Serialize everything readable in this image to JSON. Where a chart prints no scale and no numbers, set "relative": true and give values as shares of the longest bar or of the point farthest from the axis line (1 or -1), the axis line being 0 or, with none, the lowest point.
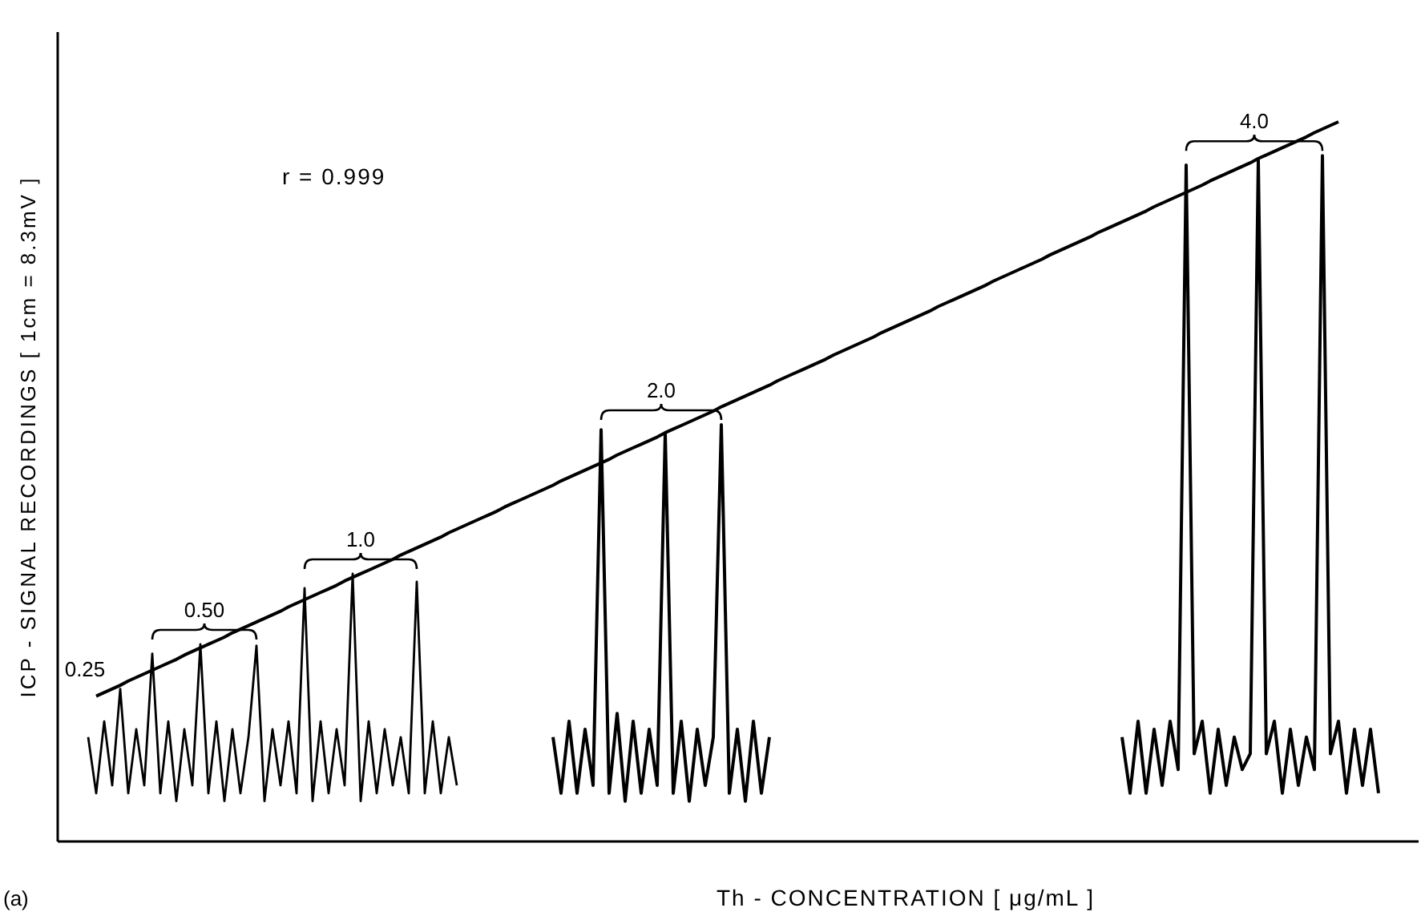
{
  "chart_data": {
    "type": "line",
    "relative": true,
    "xlabel": "Th - CONCENTRATION [ μg/mL ]",
    "ylabel": "ICP - SIGNAL RECORDINGS [ 1cm = 8.3mV ]",
    "annotations": [
      "r = 0.999",
      "(a)",
      "0.25",
      "0.50",
      "1.0",
      "2.0",
      "4.0"
    ],
    "categories": [
      null,
      null,
      null,
      null,
      null,
      null,
      null,
      null,
      null,
      null,
      null,
      null,
      null,
      null,
      null,
      null,
      null,
      null,
      null,
      null,
      null,
      null,
      null,
      null,
      null,
      null,
      null,
      null,
      null,
      null,
      null,
      null,
      null,
      null,
      null,
      null,
      null,
      null,
      null,
      null,
      null,
      null,
      null,
      null,
      null,
      null,
      null,
      null,
      null,
      null,
      null,
      null,
      null,
      null,
      null,
      null,
      null,
      null,
      null,
      null,
      null,
      null,
      null,
      null,
      null,
      null,
      null,
      null,
      null,
      null,
      null,
      null,
      null,
      null,
      null,
      null,
      null,
      null,
      null,
      null,
      null,
      null,
      null,
      null,
      null,
      null,
      null,
      null,
      null,
      null,
      null,
      null,
      null,
      null,
      null,
      null,
      null,
      null,
      null,
      null,
      null,
      null,
      null,
      null,
      null,
      null,
      null,
      null,
      null,
      null,
      null,
      null,
      null,
      null,
      null,
      null,
      null,
      null,
      null,
      null,
      null,
      null,
      null,
      null,
      null,
      null,
      null,
      null,
      null,
      null,
      null,
      null,
      null,
      null,
      null,
      null,
      null,
      null,
      null,
      null,
      null,
      null,
      null,
      null,
      null,
      null,
      null,
      null,
      null,
      null,
      null,
      null,
      null,
      null,
      null,
      null,
      null,
      null,
      null,
      null,
      null,
      null
    ],
    "series": [
      {
        "color": "#000000",
        "values": [
          0.145,
          0.067,
          0.167,
          0.078,
          0.212,
          0.067,
          0.156,
          0.078,
          0.261,
          0.067,
          0.167,
          0.056,
          0.156,
          0.078,
          0.274,
          0.067,
          0.167,
          0.056,
          0.156,
          0.067,
          0.145,
          0.272,
          0.056,
          0.156,
          0.078,
          0.167,
          0.067,
          0.352,
          0.056,
          0.167,
          0.067,
          0.156,
          0.078,
          0.372,
          0.056,
          0.167,
          0.067,
          0.156,
          0.078,
          0.145,
          0.067,
          0.361,
          0.067,
          0.167,
          0.067,
          0.145,
          0.078,
          null,
          null,
          null,
          null,
          null,
          null,
          null,
          null,
          null,
          null,
          null,
          null,
          null,
          null,
          null,
          null,
          null,
          null,
          null,
          null,
          null,
          null,
          null,
          null,
          null,
          null,
          null,
          null,
          null,
          null,
          null,
          null,
          null,
          null,
          null,
          null,
          null,
          null,
          null,
          null,
          null,
          null,
          null,
          null,
          null,
          null,
          null,
          null,
          null,
          null,
          null,
          null,
          null,
          null,
          null,
          null,
          null,
          null,
          null,
          null,
          null,
          null,
          null,
          null,
          null,
          null,
          null,
          null,
          null,
          null,
          null,
          null,
          null,
          null,
          null,
          null,
          null,
          null,
          null,
          null,
          null,
          null,
          null,
          null,
          null,
          null,
          null,
          null,
          null,
          null,
          null,
          null,
          null,
          null,
          null,
          null,
          null,
          null,
          null,
          null,
          null,
          null,
          null,
          null,
          null,
          null,
          null,
          null,
          null,
          null,
          null,
          null,
          null,
          null,
          null
        ]
      },
      {
        "color": "#000000",
        "values": [
          null,
          null,
          null,
          null,
          null,
          null,
          null,
          null,
          null,
          null,
          null,
          null,
          null,
          null,
          null,
          null,
          null,
          null,
          null,
          null,
          null,
          null,
          null,
          null,
          null,
          null,
          null,
          null,
          null,
          null,
          null,
          null,
          null,
          null,
          null,
          null,
          null,
          null,
          null,
          null,
          null,
          null,
          null,
          null,
          null,
          null,
          null,
          null,
          null,
          null,
          null,
          null,
          null,
          null,
          null,
          null,
          null,
          null,
          0.145,
          0.067,
          0.167,
          0.067,
          0.156,
          0.078,
          0.572,
          0.067,
          0.178,
          0.056,
          0.167,
          0.067,
          0.156,
          0.078,
          0.568,
          0.067,
          0.167,
          0.056,
          0.156,
          0.078,
          0.145,
          0.579,
          0.067,
          0.156,
          0.056,
          0.167,
          0.067,
          0.145,
          null,
          null,
          null,
          null,
          null,
          null,
          null,
          null,
          null,
          null,
          null,
          null,
          null,
          null,
          null,
          null,
          null,
          null,
          null,
          null,
          null,
          null,
          null,
          null,
          null,
          null,
          null,
          null,
          null,
          null,
          null,
          null,
          null,
          null,
          null,
          null,
          null,
          null,
          null,
          null,
          null,
          null,
          null,
          null,
          null,
          null,
          null,
          null,
          null,
          null,
          null,
          null,
          null,
          null,
          null,
          null,
          null,
          null,
          null,
          null,
          null,
          null,
          null,
          null,
          null,
          null,
          null,
          null,
          null,
          null,
          null,
          null,
          null,
          null,
          null,
          null
        ]
      },
      {
        "color": "#000000",
        "values": [
          null,
          null,
          null,
          null,
          null,
          null,
          null,
          null,
          null,
          null,
          null,
          null,
          null,
          null,
          null,
          null,
          null,
          null,
          null,
          null,
          null,
          null,
          null,
          null,
          null,
          null,
          null,
          null,
          null,
          null,
          null,
          null,
          null,
          null,
          null,
          null,
          null,
          null,
          null,
          null,
          null,
          null,
          null,
          null,
          null,
          null,
          null,
          null,
          null,
          null,
          null,
          null,
          null,
          null,
          null,
          null,
          null,
          null,
          null,
          null,
          null,
          null,
          null,
          null,
          null,
          null,
          null,
          null,
          null,
          null,
          null,
          null,
          null,
          null,
          null,
          null,
          null,
          null,
          null,
          null,
          null,
          null,
          null,
          null,
          null,
          null,
          null,
          null,
          null,
          null,
          null,
          null,
          null,
          null,
          null,
          null,
          null,
          null,
          null,
          null,
          null,
          null,
          null,
          null,
          null,
          null,
          null,
          null,
          null,
          null,
          null,
          null,
          null,
          null,
          null,
          null,
          null,
          null,
          null,
          null,
          null,
          null,
          null,
          null,
          null,
          null,
          null,
          null,
          null,
          0.145,
          0.067,
          0.167,
          0.067,
          0.156,
          0.078,
          0.167,
          0.1,
          0.94,
          0.122,
          0.167,
          0.067,
          0.156,
          0.078,
          0.145,
          0.1,
          0.122,
          0.947,
          0.122,
          0.167,
          0.067,
          0.156,
          0.078,
          0.145,
          0.1,
          0.953,
          0.122,
          0.167,
          0.067,
          0.156,
          0.078,
          0.156,
          0.067
        ]
      },
      {
        "color": "#000000",
        "values": [
          null,
          0.202,
          0.207,
          0.212,
          0.217,
          0.223,
          0.228,
          0.233,
          0.238,
          0.243,
          0.248,
          0.253,
          0.259,
          0.264,
          0.269,
          0.274,
          0.279,
          0.284,
          0.29,
          0.295,
          0.3,
          0.305,
          0.31,
          0.315,
          0.32,
          0.326,
          0.331,
          0.336,
          0.341,
          0.346,
          0.351,
          0.356,
          0.362,
          0.367,
          0.372,
          0.377,
          0.382,
          0.387,
          0.392,
          0.398,
          0.403,
          0.408,
          0.413,
          0.418,
          0.423,
          0.429,
          0.434,
          0.439,
          0.444,
          0.449,
          0.454,
          0.459,
          0.465,
          0.47,
          0.475,
          0.48,
          0.485,
          0.49,
          0.495,
          0.501,
          0.506,
          0.511,
          0.516,
          0.521,
          0.526,
          0.531,
          0.537,
          0.542,
          0.547,
          0.552,
          0.557,
          0.562,
          0.568,
          0.573,
          0.578,
          0.583,
          0.588,
          0.593,
          0.598,
          0.604,
          0.609,
          0.614,
          0.619,
          0.624,
          0.629,
          0.634,
          0.64,
          0.645,
          0.65,
          0.655,
          0.66,
          0.665,
          0.67,
          0.676,
          0.681,
          0.686,
          0.691,
          0.696,
          0.701,
          0.707,
          0.712,
          0.717,
          0.722,
          0.727,
          0.732,
          0.737,
          0.743,
          0.748,
          0.753,
          0.758,
          0.763,
          0.768,
          0.773,
          0.779,
          0.784,
          0.789,
          0.794,
          0.799,
          0.804,
          0.809,
          0.815,
          0.82,
          0.825,
          0.83,
          0.835,
          0.84,
          0.846,
          0.851,
          0.856,
          0.861,
          0.866,
          0.871,
          0.876,
          0.882,
          0.887,
          0.892,
          0.897,
          0.902,
          0.907,
          0.912,
          0.918,
          0.923,
          0.928,
          0.933,
          0.938,
          0.943,
          0.949,
          0.954,
          0.959,
          0.964,
          0.969,
          0.974,
          0.979,
          0.985,
          0.99,
          0.995,
          1.0,
          null,
          null,
          null,
          null,
          null
        ]
      }
    ]
  }
}
